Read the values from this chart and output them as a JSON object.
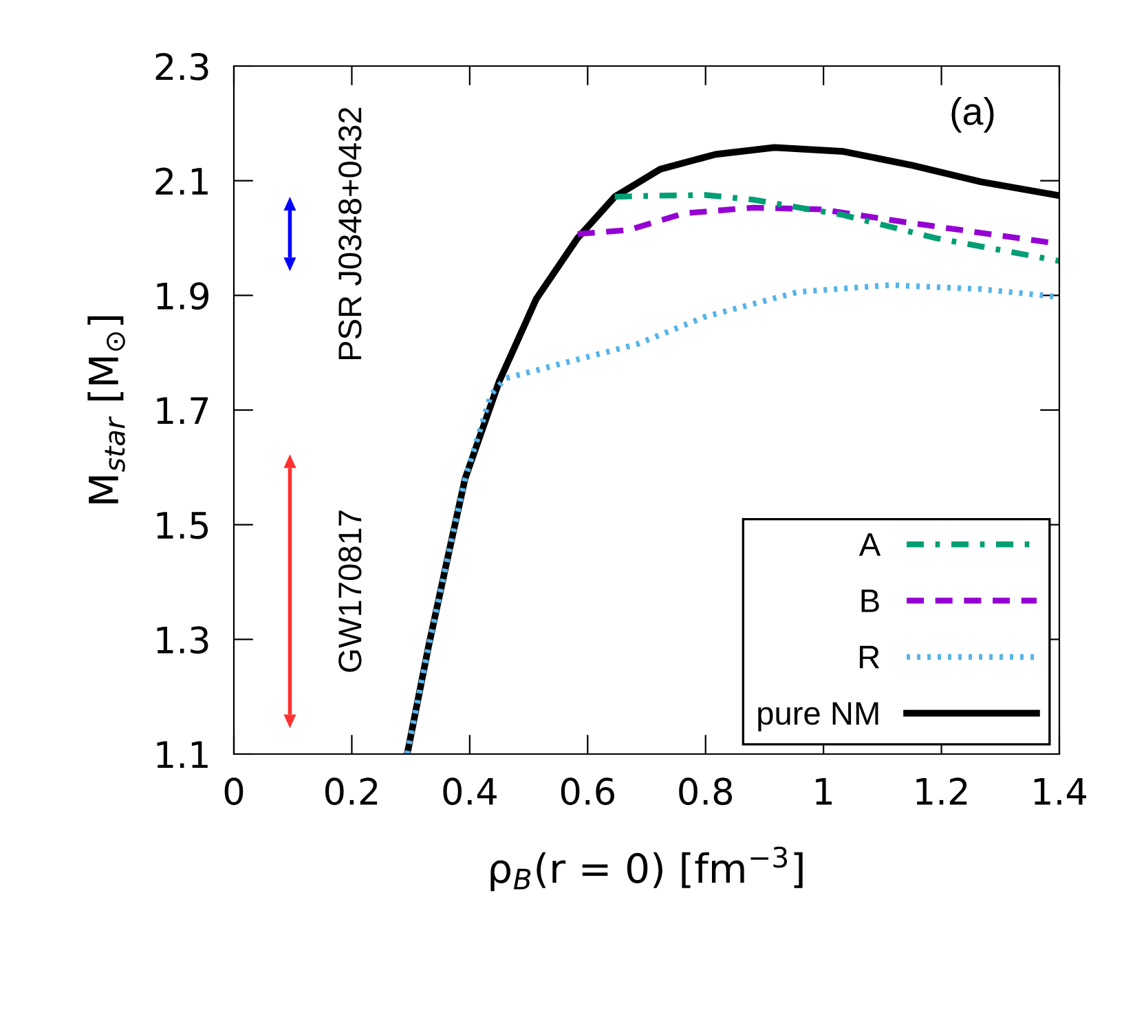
{
  "chart_data": {
    "type": "line",
    "xlabel": "ρ$_{B}$(r = 0) [fm$^{−3}$]",
    "ylabel": "M$_{star}$ [M$_{⊙}$]",
    "xlim": [
      0,
      1.4
    ],
    "ylim": [
      1.1,
      2.3
    ],
    "xticks": [
      0,
      0.2,
      0.4,
      0.6,
      0.8,
      1,
      1.2,
      1.4
    ],
    "yticks": [
      1.1,
      1.3,
      1.5,
      1.7,
      1.9,
      2.1,
      2.3
    ],
    "grid": false,
    "legend": "bottom right",
    "series": [
      {
        "name": "A",
        "color": "#009e73",
        "line_style": "dashdot",
        "x": [
          0.646,
          0.72,
          0.8,
          0.88,
          1.034,
          1.19,
          1.4
        ],
        "values": [
          2.072,
          2.074,
          2.075,
          2.067,
          2.04,
          2.0,
          1.96
        ]
      },
      {
        "name": "B",
        "color": "#9400d3",
        "line_style": "dashed",
        "x": [
          0.583,
          0.67,
          0.763,
          0.88,
          0.996,
          1.15,
          1.4
        ],
        "values": [
          2.007,
          2.014,
          2.043,
          2.053,
          2.05,
          2.026,
          1.99
        ]
      },
      {
        "name": "R",
        "color": "#56b4e9",
        "line_style": "dotted",
        "x": [
          0.294,
          0.33,
          0.36,
          0.392,
          0.436,
          0.46,
          0.567,
          0.684,
          0.8,
          0.957,
          1.113,
          1.267,
          1.4
        ],
        "values": [
          1.1,
          1.287,
          1.43,
          1.58,
          1.727,
          1.755,
          1.784,
          1.815,
          1.863,
          1.906,
          1.918,
          1.911,
          1.897
        ]
      },
      {
        "name": "pure NM",
        "color": "#000000",
        "line_style": "solid",
        "x": [
          0.294,
          0.33,
          0.36,
          0.392,
          0.45,
          0.513,
          0.583,
          0.646,
          0.723,
          0.817,
          0.917,
          1.034,
          1.15,
          1.267,
          1.4
        ],
        "values": [
          1.1,
          1.287,
          1.43,
          1.58,
          1.75,
          1.894,
          2.0,
          2.072,
          2.12,
          2.146,
          2.158,
          2.151,
          2.127,
          2.098,
          2.074
        ]
      },
      {
        "color": "#0000ff",
        "x": [
          0.095,
          0.095
        ],
        "values": [
          1.966,
          2.048
        ]
      },
      {
        "color": "#ff3030",
        "x": [
          0.095,
          0.095
        ],
        "values": [
          1.169,
          1.599
        ]
      }
    ],
    "annotations": [
      "PSR J0348+0432",
      "GW170817",
      "(a)"
    ]
  }
}
